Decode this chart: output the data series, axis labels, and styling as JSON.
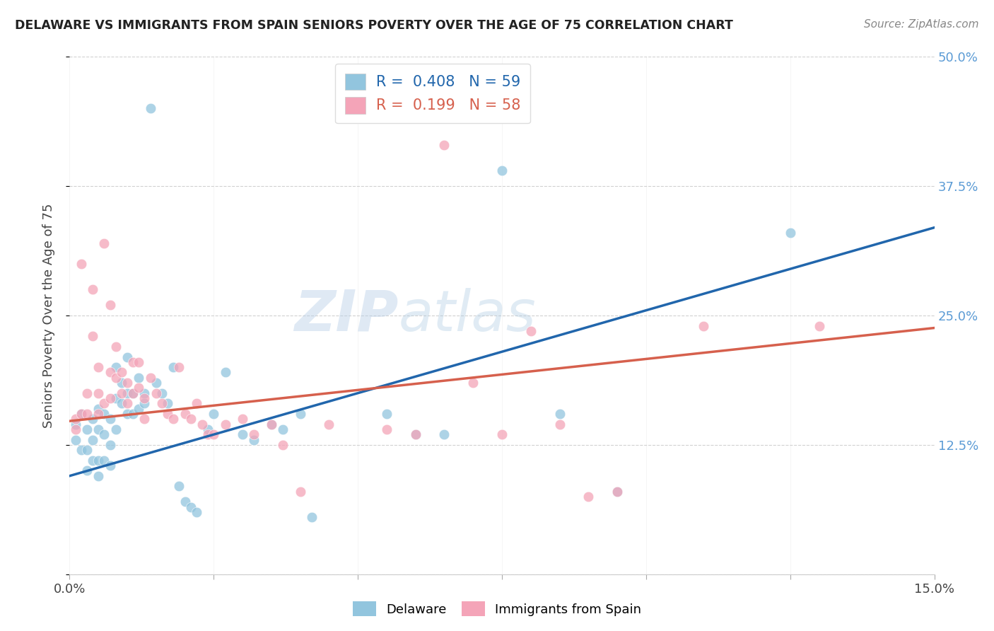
{
  "title": "DELAWARE VS IMMIGRANTS FROM SPAIN SENIORS POVERTY OVER THE AGE OF 75 CORRELATION CHART",
  "source": "Source: ZipAtlas.com",
  "ylabel": "Seniors Poverty Over the Age of 75",
  "x_min": 0.0,
  "x_max": 0.15,
  "y_min": 0.0,
  "y_max": 0.5,
  "delaware_color": "#92c5de",
  "spain_color": "#f4a4b8",
  "delaware_line_color": "#2166ac",
  "spain_line_color": "#d6604d",
  "R_delaware": 0.408,
  "N_delaware": 59,
  "R_spain": 0.199,
  "N_spain": 58,
  "watermark_zip": "ZIP",
  "watermark_atlas": "atlas",
  "del_line_x0": 0.0,
  "del_line_y0": 0.095,
  "del_line_x1": 0.15,
  "del_line_y1": 0.335,
  "spa_line_x0": 0.0,
  "spa_line_y0": 0.148,
  "spa_line_x1": 0.15,
  "spa_line_y1": 0.238,
  "delaware_x": [
    0.001,
    0.001,
    0.002,
    0.002,
    0.003,
    0.003,
    0.003,
    0.004,
    0.004,
    0.004,
    0.005,
    0.005,
    0.005,
    0.005,
    0.006,
    0.006,
    0.006,
    0.007,
    0.007,
    0.007,
    0.008,
    0.008,
    0.008,
    0.009,
    0.009,
    0.01,
    0.01,
    0.01,
    0.011,
    0.011,
    0.012,
    0.012,
    0.013,
    0.013,
    0.014,
    0.015,
    0.016,
    0.017,
    0.018,
    0.019,
    0.02,
    0.021,
    0.022,
    0.024,
    0.025,
    0.027,
    0.03,
    0.032,
    0.035,
    0.037,
    0.04,
    0.042,
    0.055,
    0.06,
    0.065,
    0.075,
    0.085,
    0.095,
    0.125
  ],
  "delaware_y": [
    0.145,
    0.13,
    0.12,
    0.155,
    0.14,
    0.12,
    0.1,
    0.15,
    0.13,
    0.11,
    0.16,
    0.14,
    0.11,
    0.095,
    0.155,
    0.135,
    0.11,
    0.15,
    0.125,
    0.105,
    0.2,
    0.17,
    0.14,
    0.185,
    0.165,
    0.21,
    0.175,
    0.155,
    0.175,
    0.155,
    0.19,
    0.16,
    0.175,
    0.165,
    0.45,
    0.185,
    0.175,
    0.165,
    0.2,
    0.085,
    0.07,
    0.065,
    0.06,
    0.14,
    0.155,
    0.195,
    0.135,
    0.13,
    0.145,
    0.14,
    0.155,
    0.055,
    0.155,
    0.135,
    0.135,
    0.39,
    0.155,
    0.08,
    0.33
  ],
  "spain_x": [
    0.001,
    0.001,
    0.002,
    0.002,
    0.003,
    0.003,
    0.004,
    0.004,
    0.005,
    0.005,
    0.005,
    0.006,
    0.006,
    0.007,
    0.007,
    0.007,
    0.008,
    0.008,
    0.009,
    0.009,
    0.01,
    0.01,
    0.011,
    0.011,
    0.012,
    0.012,
    0.013,
    0.013,
    0.014,
    0.015,
    0.016,
    0.017,
    0.018,
    0.019,
    0.02,
    0.021,
    0.022,
    0.023,
    0.024,
    0.025,
    0.027,
    0.03,
    0.032,
    0.035,
    0.037,
    0.04,
    0.045,
    0.055,
    0.06,
    0.065,
    0.07,
    0.075,
    0.08,
    0.085,
    0.09,
    0.095,
    0.11,
    0.13
  ],
  "spain_y": [
    0.15,
    0.14,
    0.3,
    0.155,
    0.175,
    0.155,
    0.275,
    0.23,
    0.2,
    0.175,
    0.155,
    0.32,
    0.165,
    0.26,
    0.195,
    0.17,
    0.22,
    0.19,
    0.195,
    0.175,
    0.185,
    0.165,
    0.205,
    0.175,
    0.205,
    0.18,
    0.17,
    0.15,
    0.19,
    0.175,
    0.165,
    0.155,
    0.15,
    0.2,
    0.155,
    0.15,
    0.165,
    0.145,
    0.135,
    0.135,
    0.145,
    0.15,
    0.135,
    0.145,
    0.125,
    0.08,
    0.145,
    0.14,
    0.135,
    0.415,
    0.185,
    0.135,
    0.235,
    0.145,
    0.075,
    0.08,
    0.24,
    0.24
  ]
}
